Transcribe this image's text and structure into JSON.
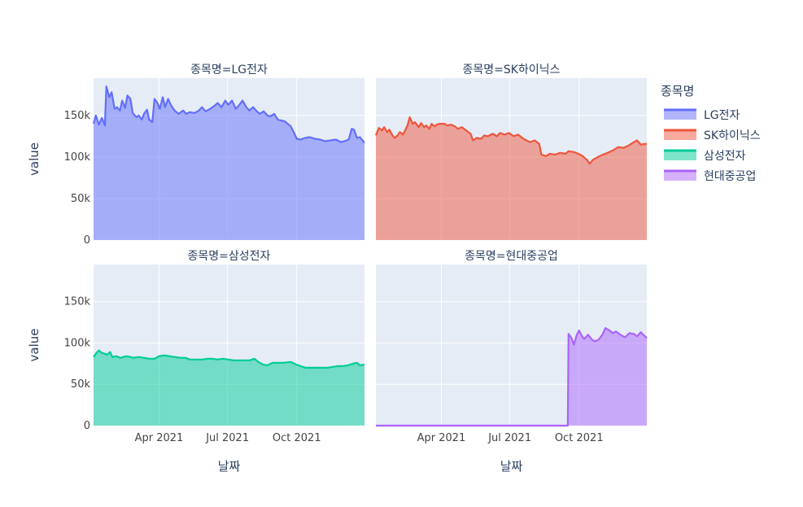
{
  "chart_data": {
    "type": "area",
    "facet_key": "종목명",
    "legend": {
      "title": "종목명",
      "placement": "right",
      "items": [
        {
          "name": "LG전자",
          "color": "#636efa"
        },
        {
          "name": "SK하이닉스",
          "color": "#EF553B"
        },
        {
          "name": "삼성전자",
          "color": "#00cc96"
        },
        {
          "name": "현대중공업",
          "color": "#ab63fa"
        }
      ]
    },
    "x_axis": {
      "title": "날짜",
      "range": [
        "2021-01-04",
        "2021-12-30"
      ],
      "ticks": [
        {
          "date": "2021-04-01",
          "label": "Apr 2021"
        },
        {
          "date": "2021-07-01",
          "label": "Jul 2021"
        },
        {
          "date": "2021-10-01",
          "label": "Oct 2021"
        }
      ]
    },
    "y_axis": {
      "title": "value",
      "range": [
        0,
        195000
      ],
      "ticks": [
        {
          "value": 0,
          "label": "0"
        },
        {
          "value": 50000,
          "label": "50k"
        },
        {
          "value": 100000,
          "label": "100k"
        },
        {
          "value": 150000,
          "label": "150k"
        }
      ]
    },
    "grid": true,
    "panels": [
      {
        "title": "종목명=LG전자",
        "series": "LG전자",
        "color": "#636efa",
        "fill": "rgba(99,110,250,0.5)",
        "points": [
          [
            "2021-01-04",
            140000
          ],
          [
            "2021-01-07",
            150000
          ],
          [
            "2021-01-11",
            139000
          ],
          [
            "2021-01-15",
            147000
          ],
          [
            "2021-01-19",
            138000
          ],
          [
            "2021-01-21",
            185000
          ],
          [
            "2021-01-25",
            172000
          ],
          [
            "2021-01-28",
            178000
          ],
          [
            "2021-02-01",
            158000
          ],
          [
            "2021-02-04",
            160000
          ],
          [
            "2021-02-08",
            156000
          ],
          [
            "2021-02-11",
            168000
          ],
          [
            "2021-02-15",
            159000
          ],
          [
            "2021-02-18",
            174000
          ],
          [
            "2021-02-22",
            170000
          ],
          [
            "2021-02-25",
            153000
          ],
          [
            "2021-03-02",
            148000
          ],
          [
            "2021-03-05",
            150000
          ],
          [
            "2021-03-09",
            145000
          ],
          [
            "2021-03-12",
            152000
          ],
          [
            "2021-03-16",
            157000
          ],
          [
            "2021-03-19",
            145000
          ],
          [
            "2021-03-23",
            142000
          ],
          [
            "2021-03-26",
            170000
          ],
          [
            "2021-03-30",
            165000
          ],
          [
            "2021-04-02",
            158000
          ],
          [
            "2021-04-06",
            172000
          ],
          [
            "2021-04-09",
            160000
          ],
          [
            "2021-04-13",
            170000
          ],
          [
            "2021-04-16",
            164000
          ],
          [
            "2021-04-20",
            158000
          ],
          [
            "2021-04-23",
            155000
          ],
          [
            "2021-04-27",
            152000
          ],
          [
            "2021-05-03",
            156000
          ],
          [
            "2021-05-07",
            152000
          ],
          [
            "2021-05-12",
            154000
          ],
          [
            "2021-05-18",
            153000
          ],
          [
            "2021-05-24",
            156000
          ],
          [
            "2021-05-28",
            160000
          ],
          [
            "2021-06-02",
            155000
          ],
          [
            "2021-06-08",
            158000
          ],
          [
            "2021-06-14",
            162000
          ],
          [
            "2021-06-18",
            165000
          ],
          [
            "2021-06-23",
            160000
          ],
          [
            "2021-06-28",
            168000
          ],
          [
            "2021-07-02",
            163000
          ],
          [
            "2021-07-07",
            168000
          ],
          [
            "2021-07-12",
            158000
          ],
          [
            "2021-07-16",
            162000
          ],
          [
            "2021-07-21",
            168000
          ],
          [
            "2021-07-26",
            160000
          ],
          [
            "2021-07-30",
            156000
          ],
          [
            "2021-08-04",
            160000
          ],
          [
            "2021-08-09",
            155000
          ],
          [
            "2021-08-13",
            152000
          ],
          [
            "2021-08-18",
            155000
          ],
          [
            "2021-08-23",
            150000
          ],
          [
            "2021-08-27",
            149000
          ],
          [
            "2021-09-01",
            152000
          ],
          [
            "2021-09-06",
            145000
          ],
          [
            "2021-09-10",
            144000
          ],
          [
            "2021-09-15",
            143000
          ],
          [
            "2021-09-23",
            137000
          ],
          [
            "2021-09-28",
            128000
          ],
          [
            "2021-10-01",
            122000
          ],
          [
            "2021-10-06",
            121000
          ],
          [
            "2021-10-12",
            123000
          ],
          [
            "2021-10-18",
            124000
          ],
          [
            "2021-10-25",
            122000
          ],
          [
            "2021-11-01",
            121000
          ],
          [
            "2021-11-08",
            119000
          ],
          [
            "2021-11-15",
            120000
          ],
          [
            "2021-11-22",
            121000
          ],
          [
            "2021-11-29",
            118000
          ],
          [
            "2021-12-03",
            119000
          ],
          [
            "2021-12-09",
            121000
          ],
          [
            "2021-12-13",
            134000
          ],
          [
            "2021-12-16",
            133000
          ],
          [
            "2021-12-20",
            123000
          ],
          [
            "2021-12-24",
            124000
          ],
          [
            "2021-12-30",
            117000
          ]
        ]
      },
      {
        "title": "종목명=SK하이닉스",
        "series": "SK하이닉스",
        "color": "#EF553B",
        "fill": "rgba(239,85,59,0.5)",
        "points": [
          [
            "2021-01-04",
            126000
          ],
          [
            "2021-01-08",
            135000
          ],
          [
            "2021-01-12",
            132000
          ],
          [
            "2021-01-15",
            136000
          ],
          [
            "2021-01-19",
            130000
          ],
          [
            "2021-01-22",
            133000
          ],
          [
            "2021-01-26",
            126000
          ],
          [
            "2021-01-29",
            123000
          ],
          [
            "2021-02-02",
            126000
          ],
          [
            "2021-02-05",
            130000
          ],
          [
            "2021-02-09",
            127000
          ],
          [
            "2021-02-15",
            138000
          ],
          [
            "2021-02-18",
            148000
          ],
          [
            "2021-02-22",
            140000
          ],
          [
            "2021-02-25",
            142000
          ],
          [
            "2021-03-02",
            136000
          ],
          [
            "2021-03-05",
            141000
          ],
          [
            "2021-03-09",
            136000
          ],
          [
            "2021-03-12",
            138000
          ],
          [
            "2021-03-16",
            134000
          ],
          [
            "2021-03-19",
            140000
          ],
          [
            "2021-03-23",
            137000
          ],
          [
            "2021-03-26",
            139000
          ],
          [
            "2021-03-30",
            140000
          ],
          [
            "2021-04-05",
            140000
          ],
          [
            "2021-04-09",
            138000
          ],
          [
            "2021-04-14",
            139000
          ],
          [
            "2021-04-19",
            137000
          ],
          [
            "2021-04-23",
            134000
          ],
          [
            "2021-04-28",
            136000
          ],
          [
            "2021-05-04",
            132000
          ],
          [
            "2021-05-10",
            128000
          ],
          [
            "2021-05-13",
            120000
          ],
          [
            "2021-05-18",
            123000
          ],
          [
            "2021-05-24",
            122000
          ],
          [
            "2021-05-28",
            126000
          ],
          [
            "2021-06-02",
            125000
          ],
          [
            "2021-06-08",
            128000
          ],
          [
            "2021-06-14",
            125000
          ],
          [
            "2021-06-18",
            129000
          ],
          [
            "2021-06-24",
            127000
          ],
          [
            "2021-06-30",
            129000
          ],
          [
            "2021-07-06",
            125000
          ],
          [
            "2021-07-12",
            127000
          ],
          [
            "2021-07-19",
            122000
          ],
          [
            "2021-07-23",
            120000
          ],
          [
            "2021-07-28",
            118000
          ],
          [
            "2021-08-03",
            120000
          ],
          [
            "2021-08-09",
            116000
          ],
          [
            "2021-08-12",
            103000
          ],
          [
            "2021-08-18",
            101000
          ],
          [
            "2021-08-23",
            104000
          ],
          [
            "2021-08-30",
            103000
          ],
          [
            "2021-09-06",
            105000
          ],
          [
            "2021-09-13",
            104000
          ],
          [
            "2021-09-17",
            107000
          ],
          [
            "2021-09-24",
            106000
          ],
          [
            "2021-09-30",
            104000
          ],
          [
            "2021-10-06",
            101000
          ],
          [
            "2021-10-12",
            96000
          ],
          [
            "2021-10-15",
            92000
          ],
          [
            "2021-10-20",
            97000
          ],
          [
            "2021-10-26",
            100000
          ],
          [
            "2021-11-02",
            103000
          ],
          [
            "2021-11-08",
            105000
          ],
          [
            "2021-11-15",
            108000
          ],
          [
            "2021-11-22",
            112000
          ],
          [
            "2021-11-29",
            111000
          ],
          [
            "2021-12-06",
            114000
          ],
          [
            "2021-12-13",
            118000
          ],
          [
            "2021-12-17",
            120000
          ],
          [
            "2021-12-22",
            115000
          ],
          [
            "2021-12-30",
            116000
          ]
        ]
      },
      {
        "title": "종목명=삼성전자",
        "series": "삼성전자",
        "color": "#00cc96",
        "fill": "rgba(0,204,150,0.5)",
        "points": [
          [
            "2021-01-04",
            83000
          ],
          [
            "2021-01-08",
            88000
          ],
          [
            "2021-01-11",
            91000
          ],
          [
            "2021-01-15",
            88000
          ],
          [
            "2021-01-19",
            87000
          ],
          [
            "2021-01-22",
            86000
          ],
          [
            "2021-01-26",
            89000
          ],
          [
            "2021-01-29",
            83000
          ],
          [
            "2021-02-03",
            84000
          ],
          [
            "2021-02-09",
            82000
          ],
          [
            "2021-02-16",
            84000
          ],
          [
            "2021-02-22",
            83000
          ],
          [
            "2021-02-26",
            82000
          ],
          [
            "2021-03-05",
            83000
          ],
          [
            "2021-03-12",
            82000
          ],
          [
            "2021-03-19",
            81000
          ],
          [
            "2021-03-26",
            81000
          ],
          [
            "2021-04-01",
            84000
          ],
          [
            "2021-04-08",
            85000
          ],
          [
            "2021-04-15",
            84000
          ],
          [
            "2021-04-22",
            83000
          ],
          [
            "2021-04-29",
            82000
          ],
          [
            "2021-05-06",
            82000
          ],
          [
            "2021-05-12",
            80000
          ],
          [
            "2021-05-20",
            80000
          ],
          [
            "2021-05-28",
            80000
          ],
          [
            "2021-06-04",
            81000
          ],
          [
            "2021-06-11",
            81000
          ],
          [
            "2021-06-18",
            80000
          ],
          [
            "2021-06-25",
            81000
          ],
          [
            "2021-07-02",
            80000
          ],
          [
            "2021-07-09",
            79000
          ],
          [
            "2021-07-16",
            79000
          ],
          [
            "2021-07-23",
            79000
          ],
          [
            "2021-07-30",
            79000
          ],
          [
            "2021-08-06",
            81000
          ],
          [
            "2021-08-11",
            77000
          ],
          [
            "2021-08-17",
            74000
          ],
          [
            "2021-08-23",
            73000
          ],
          [
            "2021-08-30",
            76000
          ],
          [
            "2021-09-06",
            76000
          ],
          [
            "2021-09-13",
            76000
          ],
          [
            "2021-09-23",
            77000
          ],
          [
            "2021-09-30",
            74000
          ],
          [
            "2021-10-06",
            72000
          ],
          [
            "2021-10-13",
            70000
          ],
          [
            "2021-10-20",
            70000
          ],
          [
            "2021-10-27",
            70000
          ],
          [
            "2021-11-03",
            70000
          ],
          [
            "2021-11-10",
            70000
          ],
          [
            "2021-11-17",
            71000
          ],
          [
            "2021-11-24",
            72000
          ],
          [
            "2021-12-01",
            72000
          ],
          [
            "2021-12-08",
            73000
          ],
          [
            "2021-12-15",
            75000
          ],
          [
            "2021-12-20",
            76000
          ],
          [
            "2021-12-24",
            73000
          ],
          [
            "2021-12-30",
            74000
          ]
        ]
      },
      {
        "title": "종목명=현대중공업",
        "series": "현대중공업",
        "color": "#ab63fa",
        "fill": "rgba(171,99,250,0.5)",
        "points": [
          [
            "2021-01-04",
            0
          ],
          [
            "2021-09-16",
            0
          ],
          [
            "2021-09-17",
            111000
          ],
          [
            "2021-09-21",
            106000
          ],
          [
            "2021-09-24",
            98000
          ],
          [
            "2021-09-28",
            110000
          ],
          [
            "2021-10-01",
            115000
          ],
          [
            "2021-10-05",
            108000
          ],
          [
            "2021-10-08",
            105000
          ],
          [
            "2021-10-13",
            110000
          ],
          [
            "2021-10-18",
            104000
          ],
          [
            "2021-10-22",
            102000
          ],
          [
            "2021-10-27",
            104000
          ],
          [
            "2021-11-01",
            110000
          ],
          [
            "2021-11-05",
            118000
          ],
          [
            "2021-11-09",
            116000
          ],
          [
            "2021-11-15",
            112000
          ],
          [
            "2021-11-19",
            114000
          ],
          [
            "2021-11-25",
            110000
          ],
          [
            "2021-12-01",
            107000
          ],
          [
            "2021-12-07",
            112000
          ],
          [
            "2021-12-13",
            111000
          ],
          [
            "2021-12-17",
            108000
          ],
          [
            "2021-12-22",
            113000
          ],
          [
            "2021-12-30",
            106000
          ]
        ]
      }
    ]
  }
}
